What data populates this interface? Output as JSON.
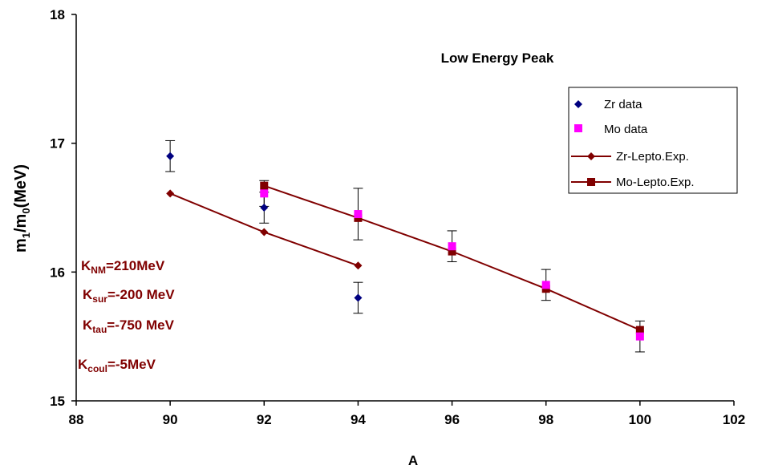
{
  "chart_data": {
    "type": "scatter",
    "title": "Low Energy Peak",
    "xlabel": "A",
    "ylabel_main": "m",
    "ylabel_sub1": "1",
    "ylabel_mid": "/m",
    "ylabel_sub0": "0",
    "ylabel_end": "(MeV)",
    "xlim": [
      88,
      102
    ],
    "ylim": [
      15,
      18
    ],
    "xticks": [
      "88",
      "90",
      "92",
      "94",
      "96",
      "98",
      "100",
      "102"
    ],
    "xtick_values": [
      88,
      90,
      92,
      94,
      96,
      98,
      100,
      102
    ],
    "yticks": [
      "15",
      "16",
      "17",
      "18"
    ],
    "ytick_values": [
      15,
      16,
      17,
      18
    ],
    "grid": false,
    "legend_position": "right",
    "series": [
      {
        "name": "Zr data",
        "kind": "points",
        "marker": "diamond",
        "color": "#000080",
        "x": [
          90,
          92,
          94
        ],
        "y": [
          16.9,
          16.5,
          15.8
        ],
        "err": [
          0.12,
          0.12,
          0.12
        ]
      },
      {
        "name": "Mo data",
        "kind": "points",
        "marker": "square",
        "color": "#FF00FF",
        "x": [
          92,
          94,
          96,
          98,
          100
        ],
        "y": [
          16.61,
          16.45,
          16.2,
          15.9,
          15.5
        ],
        "err": [
          0.1,
          0.2,
          0.12,
          0.12,
          0.12
        ]
      },
      {
        "name": "Zr-Lepto.Exp.",
        "kind": "line",
        "marker": "diamond",
        "color": "#800000",
        "x": [
          90,
          92,
          94
        ],
        "y": [
          16.61,
          16.31,
          16.05
        ]
      },
      {
        "name": "Mo-Lepto.Exp.",
        "kind": "line",
        "marker": "square",
        "color": "#800000",
        "x": [
          92,
          94,
          96,
          98,
          100
        ],
        "y": [
          16.67,
          16.42,
          16.16,
          15.87,
          15.55
        ]
      }
    ],
    "annotations": [
      {
        "main": "K",
        "sub": "NM",
        "rest": "=210MeV"
      },
      {
        "main": "K",
        "sub": "sur",
        "rest": "=-200 MeV"
      },
      {
        "main": "K",
        "sub": "tau",
        "rest": "=-750 MeV"
      },
      {
        "main": "K",
        "sub": "coul",
        "rest": "=-5MeV"
      }
    ],
    "colors": {
      "annotation": "#800000",
      "axis": "#000000",
      "errorbar": "#000000"
    }
  }
}
